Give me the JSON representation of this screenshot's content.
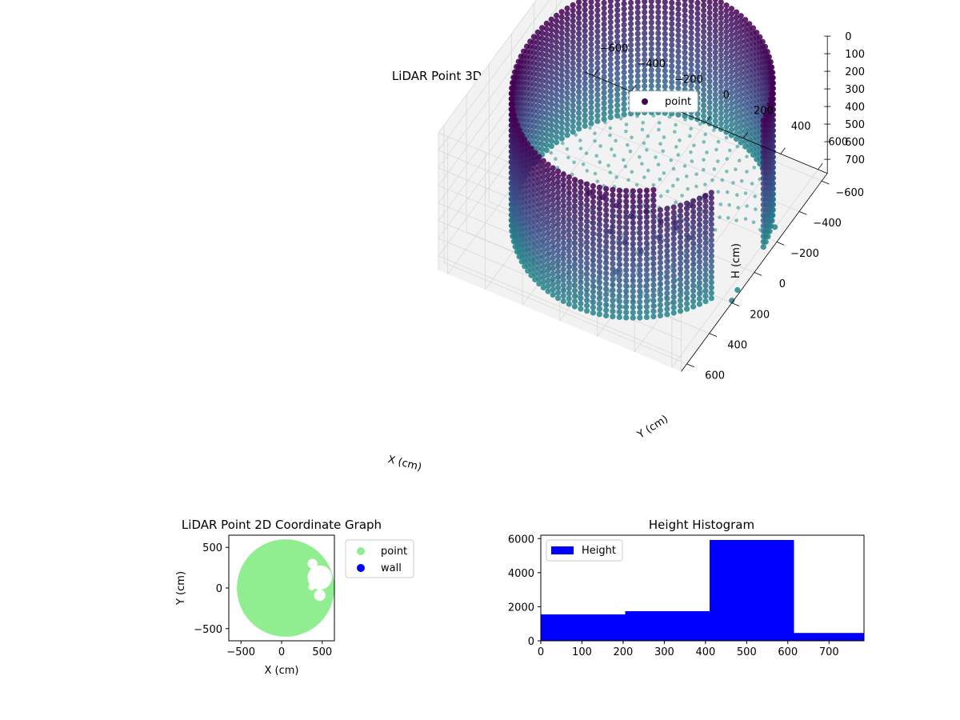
{
  "colors": {
    "viridis_top": "#440154",
    "viridis_mid": "#3b528b",
    "viridis_low": "#21918c",
    "point_2d": "#90ee90",
    "wall_2d": "#0000ff",
    "histogram": "#0000ff",
    "pane": "#f2f2f2",
    "grid": "#d9d9d9"
  },
  "chart_data": [
    {
      "type": "scatter",
      "title": "LiDAR Point 3D Coordinate Graph",
      "xlabel": "X (cm)",
      "ylabel": "Y (cm)",
      "zlabel": "H (cm)",
      "xticks": [
        "−600",
        "−400",
        "−200",
        "0",
        "200",
        "400",
        "600"
      ],
      "yticks": [
        "−600",
        "−400",
        "−200",
        "0",
        "200",
        "400",
        "600"
      ],
      "zticks": [
        "0",
        "100",
        "200",
        "300",
        "400",
        "500",
        "600",
        "700"
      ],
      "xlim": [
        -650,
        650
      ],
      "ylim": [
        -650,
        650
      ],
      "zlim": [
        0,
        780
      ],
      "z_inverted": true,
      "legend": [
        "point"
      ],
      "legend_position": "top-right",
      "colormap": "viridis",
      "wall": {
        "center_x": 50,
        "center_y": 0,
        "radius": 600,
        "height_min": 0,
        "height_max": 730
      },
      "floor": {
        "center_x": 50,
        "center_y": 0,
        "radius": 560,
        "height": 700
      },
      "interior_cluster": [
        [
          80,
          520,
          130
        ],
        [
          120,
          470,
          180
        ],
        [
          170,
          430,
          240
        ],
        [
          230,
          400,
          300
        ],
        [
          300,
          380,
          260
        ],
        [
          360,
          350,
          320
        ],
        [
          420,
          310,
          360
        ],
        [
          470,
          280,
          420
        ],
        [
          150,
          450,
          380
        ],
        [
          210,
          420,
          440
        ],
        [
          260,
          360,
          520
        ],
        [
          320,
          300,
          470
        ],
        [
          380,
          250,
          400
        ],
        [
          440,
          220,
          300
        ],
        [
          500,
          190,
          250
        ],
        [
          200,
          480,
          560
        ]
      ],
      "outliers": [
        [
          640,
          -200,
          700
        ],
        [
          650,
          150,
          750
        ],
        [
          680,
          250,
          710
        ]
      ],
      "grid": true
    },
    {
      "type": "scatter",
      "title": "LiDAR Point 2D Coordinate Graph",
      "xlabel": "X (cm)",
      "ylabel": "Y (cm)",
      "xticks": [
        "−500",
        "0",
        "500"
      ],
      "yticks": [
        "500",
        "0",
        "−500"
      ],
      "xlim": [
        -650,
        650
      ],
      "ylim": [
        -650,
        650
      ],
      "legend": [
        "point",
        "wall"
      ],
      "legend_position": "right",
      "disc": {
        "center_x": 50,
        "center_y": 0,
        "radius": 600
      },
      "cutouts": [
        {
          "x": 380,
          "y": 300,
          "r": 60
        },
        {
          "x": 470,
          "y": 130,
          "r": 150
        },
        {
          "x": 370,
          "y": 10,
          "r": 40
        },
        {
          "x": 470,
          "y": -90,
          "r": 70
        }
      ]
    },
    {
      "type": "bar",
      "title": "Height Histogram",
      "legend": [
        "Height"
      ],
      "legend_position": "top-left",
      "bin_edges": [
        0,
        205,
        410,
        615,
        785
      ],
      "values": [
        1550,
        1740,
        5920,
        460
      ],
      "xticks": [
        "0",
        "100",
        "200",
        "300",
        "400",
        "500",
        "600",
        "700"
      ],
      "yticks": [
        "0",
        "2000",
        "4000",
        "6000"
      ],
      "xlim": [
        0,
        785
      ],
      "ylim": [
        0,
        6200
      ]
    }
  ]
}
